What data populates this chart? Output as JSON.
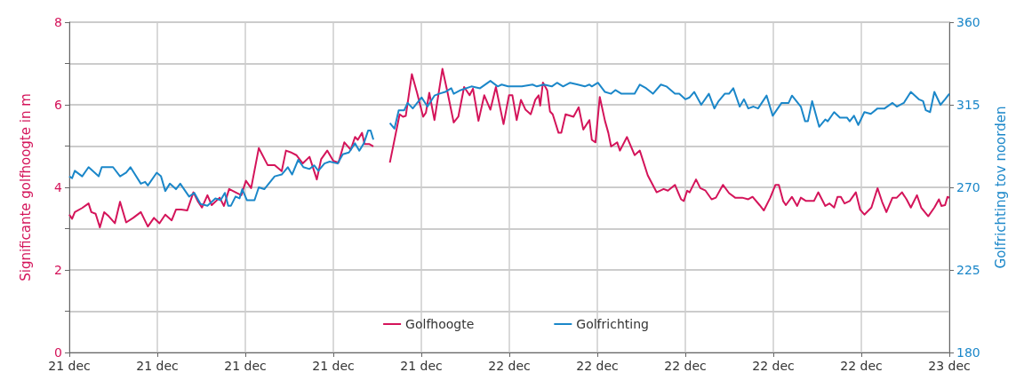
{
  "chart_data": {
    "type": "line",
    "ylabel": "Significante golfhoogte in m",
    "y2label": "Golfrichting tov noorden",
    "xlim": [
      "--12-21T00:00",
      "--12-23T00:00"
    ],
    "xticks": [
      {
        "value": "--12-21T00:00",
        "label": "21 dec"
      },
      {
        "value": "--12-21T04:48",
        "label": "21 dec"
      },
      {
        "value": "--12-21T09:36",
        "label": "21 dec"
      },
      {
        "value": "--12-21T14:24",
        "label": "21 dec"
      },
      {
        "value": "--12-21T19:12",
        "label": "21 dec"
      },
      {
        "value": "--12-22T00:00",
        "label": "22 dec"
      },
      {
        "value": "--12-22T04:48",
        "label": "22 dec"
      },
      {
        "value": "--12-22T09:36",
        "label": "22 dec"
      },
      {
        "value": "--12-22T14:24",
        "label": "22 dec"
      },
      {
        "value": "--12-22T19:12",
        "label": "22 dec"
      },
      {
        "value": "--12-23T00:00",
        "label": "23 dec"
      }
    ],
    "ylim": [
      0,
      8
    ],
    "yticks": [
      0,
      {
        "value": 1,
        "label": null
      },
      2,
      {
        "value": 3,
        "label": null
      },
      4,
      {
        "value": 5,
        "label": null
      },
      6,
      {
        "value": 7,
        "label": null
      },
      8
    ],
    "y2lim": [
      180,
      360
    ],
    "y2ticks": [
      180,
      225,
      270,
      315,
      360
    ],
    "grid": true,
    "legend": "bottom",
    "marker": "none",
    "line_style": "solid",
    "series": [
      {
        "name": "Golfhoogte",
        "color": "#d4145a",
        "x": [
          "--12-21T00:00",
          "--12-21T00:09",
          "--12-21T00:18",
          "--12-21T00:42",
          "--12-21T01:03",
          "--12-21T01:12",
          "--12-21T01:26",
          "--12-21T01:40",
          "--12-21T01:54",
          "--12-21T02:09",
          "--12-21T02:29",
          "--12-21T02:46",
          "--12-21T03:06",
          "--12-21T03:29",
          "--12-21T03:54",
          "--12-21T04:17",
          "--12-21T04:37",
          "--12-21T04:55",
          "--12-21T05:14",
          "--12-21T05:35",
          "--12-21T05:49",
          "--12-21T06:06",
          "--12-21T06:26",
          "--12-21T06:46",
          "--12-21T07:00",
          "--12-21T07:14",
          "--12-21T07:32",
          "--12-21T07:46",
          "--12-21T08:12",
          "--12-21T08:26",
          "--12-21T08:43",
          "--12-21T09:04",
          "--12-21T09:23",
          "--12-21T09:38",
          "--12-21T09:55",
          "--12-21T10:20",
          "--12-21T10:49",
          "--12-21T11:12",
          "--12-21T11:35",
          "--12-21T11:49",
          "--12-21T12:04",
          "--12-21T12:23",
          "--12-21T12:44",
          "--12-21T13:06",
          "--12-21T13:30",
          "--12-21T13:44",
          "--12-21T14:04",
          "--12-21T14:24",
          "--12-21T14:41",
          "--12-21T15:00",
          "--12-21T15:21",
          "--12-21T15:35",
          "--12-21T15:44",
          "--12-21T15:58",
          "--12-21T16:06",
          "--12-21T16:21",
          "--12-21T16:35",
          "--12-21T17:00",
          "--12-21T17:29",
          "--12-21T18:01",
          "--12-21T18:12",
          "--12-21T18:21",
          "--12-21T18:41",
          "--12-21T18:58",
          "--12-21T19:18",
          "--12-21T19:27",
          "--12-21T19:38",
          "--12-21T19:55",
          "--12-21T20:21",
          "--12-21T20:38",
          "--12-21T20:58",
          "--12-21T21:13",
          "--12-21T21:32",
          "--12-21T21:50",
          "--12-21T22:01",
          "--12-21T22:19",
          "--12-21T22:38",
          "--12-21T22:58",
          "--12-21T23:16",
          "--12-21T23:41",
          "--12-21T23:59",
          "--12-22T00:10",
          "--12-22T00:24",
          "--12-22T00:38",
          "--12-22T00:53",
          "--12-22T01:10",
          "--12-22T01:25",
          "--12-22T01:36",
          "--12-22T01:41",
          "--12-22T01:50",
          "--12-22T02:04",
          "--12-22T02:13",
          "--12-22T02:22",
          "--12-22T02:41",
          "--12-22T02:50",
          "--12-22T03:04",
          "--12-22T03:30",
          "--12-22T03:47",
          "--12-22T04:02",
          "--12-22T04:22",
          "--12-22T04:30",
          "--12-22T04:42",
          "--12-22T04:56",
          "--12-22T05:13",
          "--12-22T05:24",
          "--12-22T05:33",
          "--12-22T05:53",
          "--12-22T06:02",
          "--12-22T06:25",
          "--12-22T06:50",
          "--12-22T07:07",
          "--12-22T07:33",
          "--12-22T08:02",
          "--12-22T08:25",
          "--12-22T08:39",
          "--12-22T09:02",
          "--12-22T09:22",
          "--12-22T09:31",
          "--12-22T09:42",
          "--12-22T09:50",
          "--12-22T10:11",
          "--12-22T10:25",
          "--12-22T10:42",
          "--12-22T11:02",
          "--12-22T11:16",
          "--12-22T11:39",
          "--12-22T11:59",
          "--12-22T12:19",
          "--12-22T12:42",
          "--12-22T13:02",
          "--12-22T13:16",
          "--12-22T13:39",
          "--12-22T13:53",
          "--12-22T14:14",
          "--12-22T14:31",
          "--12-22T14:42",
          "--12-22T14:56",
          "--12-22T15:05",
          "--12-22T15:25",
          "--12-22T15:42",
          "--12-22T15:54",
          "--12-22T16:11",
          "--12-22T16:37",
          "--12-22T16:51",
          "--12-22T17:14",
          "--12-22T17:28",
          "--12-22T17:43",
          "--12-22T17:54",
          "--12-22T18:05",
          "--12-22T18:17",
          "--12-22T18:34",
          "--12-22T18:54",
          "--12-22T19:08",
          "--12-22T19:22",
          "--12-22T19:45",
          "--12-22T20:05",
          "--12-22T20:20",
          "--12-22T20:34",
          "--12-22T20:54",
          "--12-22T21:08",
          "--12-22T21:25",
          "--12-22T21:40",
          "--12-22T21:54",
          "--12-22T22:14",
          "--12-22T22:28",
          "--12-22T22:51",
          "--12-22T23:11",
          "--12-22T23:26",
          "--12-22T23:34",
          "--12-22T23:46",
          "--12-22T23:54",
          "--12-23T00:00"
        ],
        "values": [
          3.34,
          3.24,
          3.4,
          3.5,
          3.61,
          3.4,
          3.36,
          3.03,
          3.4,
          3.3,
          3.13,
          3.65,
          3.15,
          3.26,
          3.4,
          3.05,
          3.26,
          3.13,
          3.34,
          3.2,
          3.46,
          3.46,
          3.44,
          3.88,
          3.67,
          3.51,
          3.81,
          3.57,
          3.75,
          3.55,
          3.96,
          3.88,
          3.81,
          4.16,
          3.98,
          4.95,
          4.54,
          4.54,
          4.39,
          4.89,
          4.85,
          4.78,
          4.58,
          4.74,
          4.19,
          4.68,
          4.89,
          4.64,
          4.6,
          5.09,
          4.91,
          5.22,
          5.15,
          5.32,
          5.05,
          5.05,
          4.99,
          null,
          4.6,
          5.77,
          5.71,
          5.73,
          6.74,
          6.29,
          5.71,
          5.81,
          6.29,
          5.63,
          6.87,
          6.29,
          5.57,
          5.71,
          6.43,
          6.23,
          6.39,
          5.61,
          6.23,
          5.88,
          6.43,
          5.53,
          6.23,
          6.23,
          5.63,
          6.12,
          5.88,
          5.77,
          6.12,
          6.23,
          5.98,
          6.54,
          6.35,
          5.84,
          5.77,
          5.32,
          5.32,
          5.77,
          5.71,
          5.94,
          5.4,
          5.63,
          5.15,
          5.09,
          6.19,
          5.61,
          5.32,
          4.99,
          5.09,
          4.89,
          5.22,
          4.78,
          4.89,
          4.29,
          3.88,
          3.96,
          3.92,
          4.06,
          3.71,
          3.67,
          3.92,
          3.88,
          4.19,
          3.98,
          3.92,
          3.71,
          3.75,
          4.06,
          3.86,
          3.75,
          3.75,
          3.71,
          3.77,
          3.57,
          3.44,
          3.75,
          4.06,
          4.06,
          3.67,
          3.57,
          3.77,
          3.55,
          3.75,
          3.67,
          3.67,
          3.88,
          3.55,
          3.61,
          3.51,
          3.77,
          3.77,
          3.61,
          3.67,
          3.88,
          3.46,
          3.34,
          3.51,
          3.98,
          3.65,
          3.4,
          3.75,
          3.75,
          3.88,
          3.71,
          3.51,
          3.81,
          3.51,
          3.3,
          3.51,
          3.71,
          3.55,
          3.57,
          3.77,
          3.75
        ]
      },
      {
        "name": "Golfrichting",
        "color": "#1b87c9",
        "axis": "y2",
        "x": [
          "--12-21T00:00",
          "--12-21T00:09",
          "--12-21T00:18",
          "--12-21T00:42",
          "--12-21T01:03",
          "--12-21T01:36",
          "--12-21T01:46",
          "--12-21T02:23",
          "--12-21T02:46",
          "--12-21T03:06",
          "--12-21T03:20",
          "--12-21T03:54",
          "--12-21T04:08",
          "--12-21T04:17",
          "--12-21T04:46",
          "--12-21T05:00",
          "--12-21T05:14",
          "--12-21T05:29",
          "--12-21T05:49",
          "--12-21T06:03",
          "--12-21T06:32",
          "--12-21T06:49",
          "--12-21T07:09",
          "--12-21T07:32",
          "--12-21T07:58",
          "--12-21T08:15",
          "--12-21T08:29",
          "--12-21T08:40",
          "--12-21T08:49",
          "--12-21T09:04",
          "--12-21T09:17",
          "--12-21T09:26",
          "--12-21T09:41",
          "--12-21T10:06",
          "--12-21T10:20",
          "--12-21T10:38",
          "--12-21T11:12",
          "--12-21T11:35",
          "--12-21T11:55",
          "--12-21T12:09",
          "--12-21T12:29",
          "--12-21T12:46",
          "--12-21T13:06",
          "--12-21T13:21",
          "--12-21T13:35",
          "--12-21T13:55",
          "--12-21T14:12",
          "--12-21T14:38",
          "--12-21T14:55",
          "--12-21T15:15",
          "--12-21T15:35",
          "--12-21T15:49",
          "--12-21T16:04",
          "--12-21T16:18",
          "--12-21T16:26",
          "--12-21T16:35",
          "--12-21T17:00",
          "--12-21T17:29",
          "--12-21T17:44",
          "--12-21T17:58",
          "--12-21T18:16",
          "--12-21T18:27",
          "--12-21T18:44",
          "--12-21T19:13",
          "--12-21T19:32",
          "--12-21T19:55",
          "--12-21T20:10",
          "--12-21T20:30",
          "--12-21T20:50",
          "--12-21T20:58",
          "--12-21T21:21",
          "--12-21T21:56",
          "--12-21T22:24",
          "--12-21T22:58",
          "--12-21T23:22",
          "--12-21T23:35",
          "--12-21T23:56",
          "--12-22T00:27",
          "--12-22T00:41",
          "--12-22T01:16",
          "--12-22T01:30",
          "--12-22T01:53",
          "--12-22T02:19",
          "--12-22T02:36",
          "--12-22T02:56",
          "--12-22T03:19",
          "--12-22T03:44",
          "--12-22T04:07",
          "--12-22T04:22",
          "--12-22T04:30",
          "--12-22T04:50",
          "--12-22T05:13",
          "--12-22T05:33",
          "--12-22T05:47",
          "--12-22T06:07",
          "--12-22T06:22",
          "--12-22T06:50",
          "--12-22T07:07",
          "--12-22T07:28",
          "--12-22T07:50",
          "--12-22T08:16",
          "--12-22T08:34",
          "--12-22T09:02",
          "--12-22T09:16",
          "--12-22T09:36",
          "--12-22T09:50",
          "--12-22T10:05",
          "--12-22T10:28",
          "--12-22T10:53",
          "--12-22T11:11",
          "--12-22T11:25",
          "--12-22T11:45",
          "--12-22T11:59",
          "--12-22T12:13",
          "--12-22T12:34",
          "--12-22T12:48",
          "--12-22T13:02",
          "--12-22T13:19",
          "--12-22T13:34",
          "--12-22T14:02",
          "--12-22T14:22",
          "--12-22T14:51",
          "--12-22T15:14",
          "--12-22T15:25",
          "--12-22T15:54",
          "--12-22T16:08",
          "--12-22T16:17",
          "--12-22T16:31",
          "--12-22T16:54",
          "--12-22T17:14",
          "--12-22T17:22",
          "--12-22T17:43",
          "--12-22T18:02",
          "--12-22T18:25",
          "--12-22T18:34",
          "--12-22T18:48",
          "--12-22T19:02",
          "--12-22T19:22",
          "--12-22T19:43",
          "--12-22T20:05",
          "--12-22T20:28",
          "--12-22T20:54",
          "--12-22T21:08",
          "--12-22T21:31",
          "--12-22T21:54",
          "--12-22T22:20",
          "--12-22T22:34",
          "--12-22T22:43",
          "--12-22T22:57",
          "--12-22T23:11",
          "--12-22T23:31",
          "--12-22T23:46",
          "--12-23T00:00"
        ],
        "values": [
          276,
          275,
          279,
          276,
          281,
          276,
          281,
          281,
          276,
          278,
          281,
          272,
          273,
          271,
          278,
          276,
          268,
          272,
          269,
          272,
          265,
          267,
          261,
          260,
          264,
          263,
          267,
          260,
          260,
          265,
          264,
          269,
          263,
          263,
          270,
          269,
          276,
          277,
          281,
          277,
          285,
          281,
          280,
          282,
          279,
          283,
          284,
          283,
          288,
          289,
          294,
          290,
          294,
          301,
          301,
          296,
          null,
          305,
          302,
          312,
          312,
          316,
          313,
          319,
          314,
          320,
          321,
          322,
          324,
          321,
          323,
          325,
          324,
          328,
          325,
          326,
          325,
          325,
          325,
          326,
          325,
          326,
          325,
          327,
          325,
          327,
          326,
          325,
          326,
          325,
          327,
          322,
          321,
          323,
          321,
          321,
          321,
          326,
          324,
          321,
          326,
          325,
          321,
          321,
          318,
          319,
          322,
          315,
          321,
          313,
          317,
          321,
          321,
          324,
          314,
          318,
          313,
          314,
          313,
          320,
          309,
          316,
          316,
          320,
          314,
          306,
          306,
          317,
          303,
          307,
          306,
          311,
          308,
          308,
          306,
          309,
          304,
          311,
          310,
          313,
          313,
          316,
          314,
          316,
          322,
          318,
          317,
          312,
          311,
          322,
          315,
          318,
          321
        ]
      }
    ]
  }
}
